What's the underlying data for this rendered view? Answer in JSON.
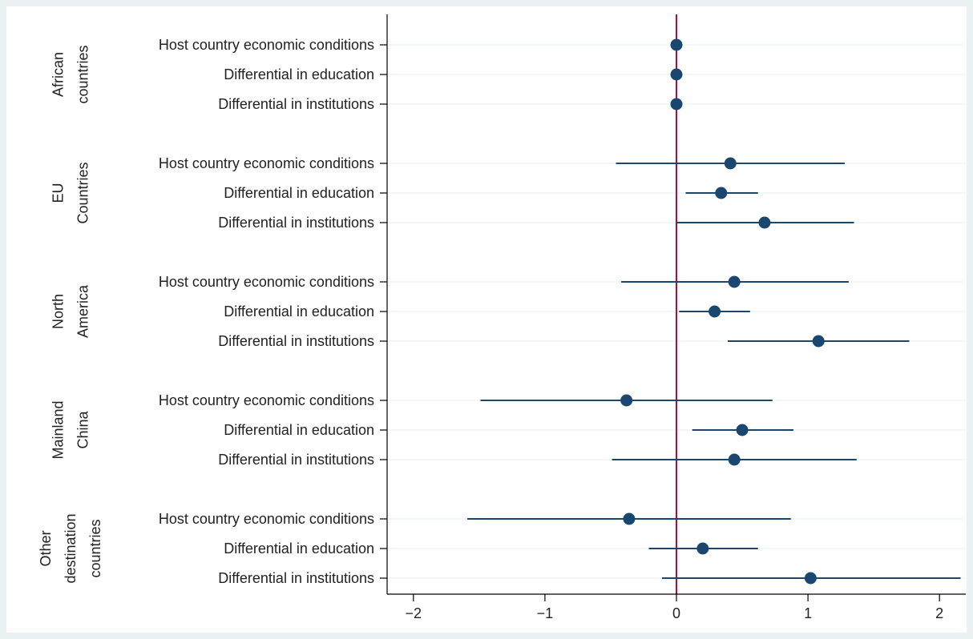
{
  "colors": {
    "background": "#eaf2f3",
    "plot_area": "#ffffff",
    "marker": "#1a476f",
    "ci_line": "#1a476f",
    "reference_line": "#c10534",
    "grid": "#eaf2f3",
    "axis": "#000000"
  },
  "chart_data": {
    "type": "scatter",
    "subtype": "coefficient-plot-horizontal",
    "title": "",
    "xlabel": "",
    "ylabel": "",
    "xlim": [
      -2.2,
      2.2
    ],
    "xticks": [
      -2,
      -1,
      0,
      1,
      2
    ],
    "xtick_labels": [
      "−2",
      "−1",
      "0",
      "1",
      "2"
    ],
    "reference_line_x": 0,
    "grid": true,
    "legend": "none",
    "groups": [
      {
        "label_lines": [
          "African",
          "countries"
        ],
        "rows": [
          {
            "label": "Host country economic conditions",
            "estimate": 0.0,
            "ci_low": 0.0,
            "ci_high": 0.0
          },
          {
            "label": "Differential in education",
            "estimate": 0.0,
            "ci_low": 0.0,
            "ci_high": 0.0
          },
          {
            "label": "Differential in institutions",
            "estimate": 0.0,
            "ci_low": 0.0,
            "ci_high": 0.0
          }
        ]
      },
      {
        "label_lines": [
          "EU",
          "Countries"
        ],
        "rows": [
          {
            "label": "Host country economic conditions",
            "estimate": 0.41,
            "ci_low": -0.46,
            "ci_high": 1.28
          },
          {
            "label": "Differential in education",
            "estimate": 0.34,
            "ci_low": 0.07,
            "ci_high": 0.62
          },
          {
            "label": "Differential in institutions",
            "estimate": 0.67,
            "ci_low": 0.0,
            "ci_high": 1.35
          }
        ]
      },
      {
        "label_lines": [
          "North",
          "America"
        ],
        "rows": [
          {
            "label": "Host country economic conditions",
            "estimate": 0.44,
            "ci_low": -0.42,
            "ci_high": 1.31
          },
          {
            "label": "Differential in education",
            "estimate": 0.29,
            "ci_low": 0.02,
            "ci_high": 0.56
          },
          {
            "label": "Differential in institutions",
            "estimate": 1.08,
            "ci_low": 0.39,
            "ci_high": 1.77
          }
        ]
      },
      {
        "label_lines": [
          "Mainland",
          "China"
        ],
        "rows": [
          {
            "label": "Host country economic conditions",
            "estimate": -0.38,
            "ci_low": -1.49,
            "ci_high": 0.73
          },
          {
            "label": "Differential in education",
            "estimate": 0.5,
            "ci_low": 0.12,
            "ci_high": 0.89
          },
          {
            "label": "Differential in institutions",
            "estimate": 0.44,
            "ci_low": -0.49,
            "ci_high": 1.37
          }
        ]
      },
      {
        "label_lines": [
          "Other",
          "destination",
          "countries"
        ],
        "rows": [
          {
            "label": "Host country economic conditions",
            "estimate": -0.36,
            "ci_low": -1.59,
            "ci_high": 0.87
          },
          {
            "label": "Differential in education",
            "estimate": 0.2,
            "ci_low": -0.21,
            "ci_high": 0.62
          },
          {
            "label": "Differential in institutions",
            "estimate": 1.02,
            "ci_low": -0.11,
            "ci_high": 2.16
          }
        ]
      }
    ]
  }
}
